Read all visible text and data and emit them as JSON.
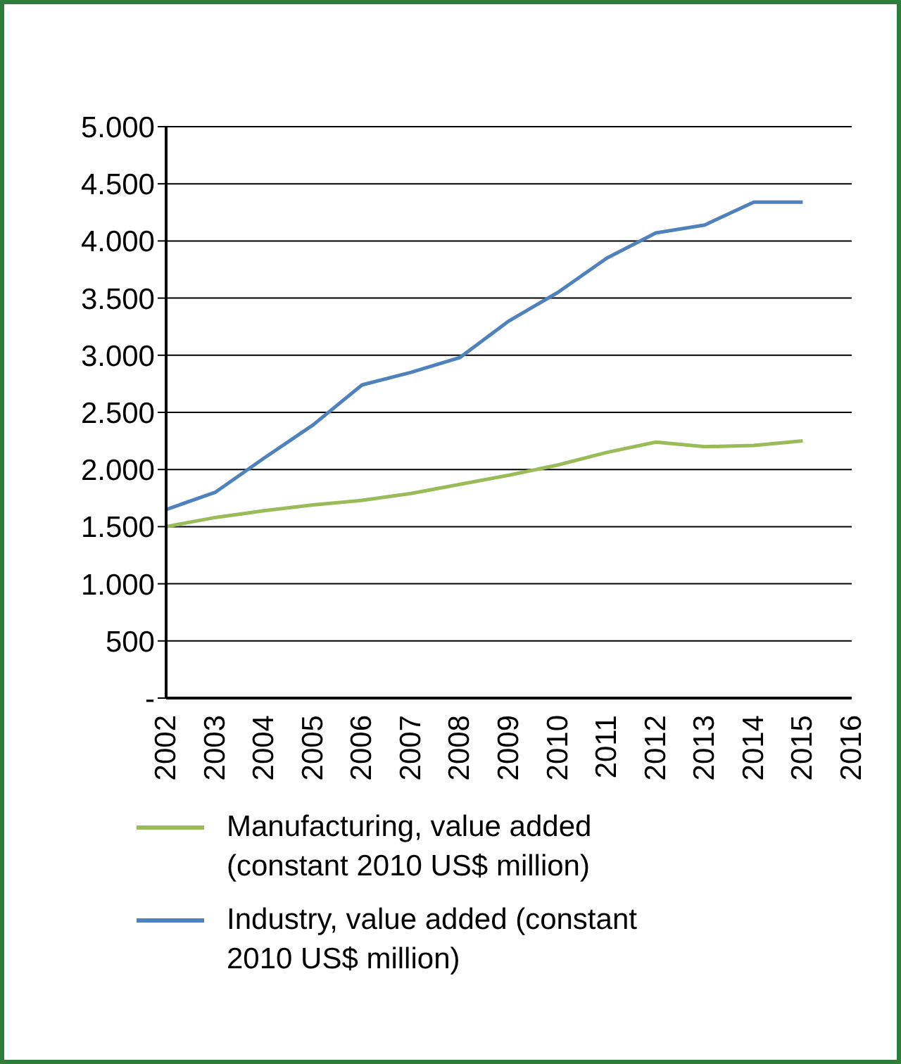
{
  "chart_data": {
    "type": "line",
    "categories": [
      "2002",
      "2003",
      "2004",
      "2005",
      "2006",
      "2007",
      "2008",
      "2009",
      "2010",
      "2011",
      "2012",
      "2013",
      "2014",
      "2015",
      "2016"
    ],
    "series": [
      {
        "name": "Manufacturing, value added (constant 2010 US$ million)",
        "color": "#9bbb59",
        "values": [
          1500,
          1580,
          1640,
          1690,
          1730,
          1790,
          1870,
          1950,
          2040,
          2150,
          2240,
          2200,
          2210,
          2250,
          null
        ]
      },
      {
        "name": "Industry, value added (constant 2010 US$ million)",
        "color": "#4f81bd",
        "values": [
          1650,
          1800,
          2100,
          2390,
          2740,
          2850,
          2980,
          3300,
          3550,
          3850,
          4070,
          4140,
          4340,
          4340,
          null
        ]
      }
    ],
    "ylim": [
      0,
      5000
    ],
    "yticks": [
      {
        "value": 0,
        "label": "-"
      },
      {
        "value": 500,
        "label": "500"
      },
      {
        "value": 1000,
        "label": "1.000"
      },
      {
        "value": 1500,
        "label": "1.500"
      },
      {
        "value": 2000,
        "label": "2.000"
      },
      {
        "value": 2500,
        "label": "2.500"
      },
      {
        "value": 3000,
        "label": "3.000"
      },
      {
        "value": 3500,
        "label": "3.500"
      },
      {
        "value": 4000,
        "label": "4.000"
      },
      {
        "value": 4500,
        "label": "4.500"
      },
      {
        "value": 5000,
        "label": "5.000"
      }
    ],
    "grid": "y",
    "legend": "bottom",
    "marker": "none",
    "line_style": "solid"
  }
}
